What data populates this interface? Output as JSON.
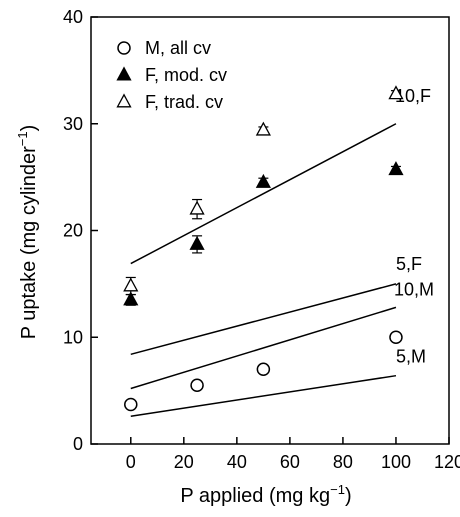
{
  "chart_data": {
    "type": "scatter",
    "xlabel_main": "P applied (mg kg",
    "xlabel_sup": "−1",
    "xlabel_end": ")",
    "ylabel_main": "P uptake (mg cylinder",
    "ylabel_sup": "−1",
    "ylabel_end": ")",
    "xlim": [
      -15,
      120
    ],
    "ylim": [
      0,
      40
    ],
    "xticks": [
      0,
      20,
      40,
      60,
      80,
      100,
      120
    ],
    "yticks": [
      0,
      10,
      20,
      30,
      40
    ],
    "legend_position": "top-left",
    "series": [
      {
        "name": "M, all cv",
        "marker": "open-circle",
        "points": [
          {
            "x": 0,
            "y": 3.7
          },
          {
            "x": 25,
            "y": 5.5
          },
          {
            "x": 50,
            "y": 7.0
          },
          {
            "x": 100,
            "y": 10.0
          }
        ]
      },
      {
        "name": "F, mod. cv",
        "marker": "filled-triangle",
        "points": [
          {
            "x": 0,
            "y": 13.5,
            "err": 0.5
          },
          {
            "x": 25,
            "y": 18.7,
            "err": 0.8
          },
          {
            "x": 50,
            "y": 24.5,
            "err": 0.4
          },
          {
            "x": 100,
            "y": 25.7,
            "err": 0.3
          }
        ]
      },
      {
        "name": "F, trad. cv",
        "marker": "open-triangle",
        "points": [
          {
            "x": 0,
            "y": 14.8,
            "err": 0.8
          },
          {
            "x": 25,
            "y": 22.0,
            "err": 0.9
          },
          {
            "x": 50,
            "y": 29.4,
            "err": 0.3
          },
          {
            "x": 100,
            "y": 32.8,
            "err": 0.3
          }
        ]
      }
    ],
    "regression_lines": [
      {
        "label": "10,F",
        "x": [
          0,
          100
        ],
        "y": [
          16.9,
          30.0
        ]
      },
      {
        "label": "5,F",
        "x": [
          0,
          100
        ],
        "y": [
          8.4,
          15.0
        ]
      },
      {
        "label": "10,M",
        "x": [
          0,
          100
        ],
        "y": [
          5.2,
          12.8
        ]
      },
      {
        "label": "5,M",
        "x": [
          0,
          100
        ],
        "y": [
          2.6,
          6.4
        ]
      }
    ]
  }
}
